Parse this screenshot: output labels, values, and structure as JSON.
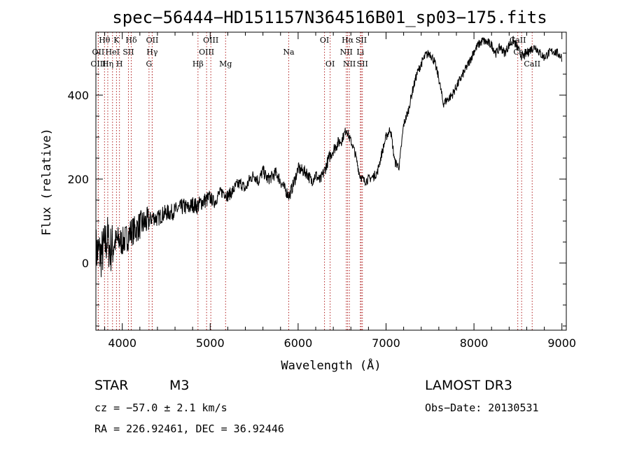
{
  "chart_data": {
    "type": "line",
    "title": "spec−56444−HD151157N364516B01_sp03−175.fits",
    "xlabel": "Wavelength (Å)",
    "ylabel": "Flux (relative)",
    "xlim": [
      3700,
      9050
    ],
    "ylim": [
      -160,
      550
    ],
    "xticks": [
      4000,
      5000,
      6000,
      7000,
      8000,
      9000
    ],
    "yticks": [
      0,
      200,
      400
    ],
    "grid": false,
    "series": [
      {
        "name": "spectrum",
        "x": [
          3700,
          3760,
          3800,
          3830,
          3860,
          3900,
          3950,
          4000,
          4050,
          4100,
          4150,
          4200,
          4250,
          4300,
          4350,
          4400,
          4450,
          4500,
          4550,
          4600,
          4650,
          4700,
          4750,
          4800,
          4850,
          4900,
          4950,
          5000,
          5050,
          5100,
          5150,
          5200,
          5250,
          5300,
          5350,
          5400,
          5450,
          5500,
          5550,
          5600,
          5650,
          5700,
          5750,
          5800,
          5850,
          5900,
          5950,
          6000,
          6050,
          6100,
          6150,
          6200,
          6250,
          6300,
          6350,
          6400,
          6450,
          6500,
          6550,
          6580,
          6620,
          6650,
          6700,
          6750,
          6800,
          6850,
          6900,
          6950,
          7000,
          7050,
          7100,
          7150,
          7200,
          7250,
          7300,
          7350,
          7400,
          7450,
          7500,
          7550,
          7600,
          7650,
          7700,
          7750,
          7800,
          7850,
          7900,
          7950,
          8000,
          8050,
          8100,
          8150,
          8200,
          8250,
          8300,
          8350,
          8400,
          8450,
          8500,
          8550,
          8600,
          8650,
          8700,
          8750,
          8800,
          8850,
          8900,
          8950,
          9000
        ],
        "values": [
          30,
          20,
          40,
          60,
          30,
          45,
          55,
          50,
          60,
          75,
          80,
          90,
          95,
          100,
          110,
          105,
          115,
          120,
          120,
          125,
          130,
          135,
          130,
          140,
          135,
          145,
          150,
          155,
          145,
          165,
          170,
          160,
          170,
          185,
          190,
          175,
          200,
          210,
          195,
          220,
          200,
          205,
          215,
          195,
          175,
          160,
          190,
          225,
          220,
          215,
          195,
          210,
          195,
          220,
          250,
          270,
          285,
          295,
          320,
          300,
          280,
          260,
          210,
          195,
          200,
          205,
          215,
          260,
          300,
          320,
          240,
          230,
          330,
          360,
          410,
          450,
          475,
          495,
          500,
          480,
          440,
          380,
          390,
          400,
          420,
          440,
          460,
          480,
          505,
          520,
          530,
          525,
          520,
          500,
          515,
          500,
          520,
          530,
          510,
          490,
          500,
          510,
          515,
          500,
          490,
          500,
          505,
          500,
          490
        ]
      }
    ],
    "line_marks": [
      {
        "label": "Hθ",
        "x": 3798,
        "row": 0
      },
      {
        "label": "K",
        "x": 3934,
        "row": 0
      },
      {
        "label": "Hδ",
        "x": 4102,
        "row": 0
      },
      {
        "label": "OII",
        "x": 4341,
        "row": 0
      },
      {
        "label": "OIII",
        "x": 5007,
        "row": 0
      },
      {
        "label": "OI",
        "x": 6300,
        "row": 0
      },
      {
        "label": "Hα",
        "x": 6563,
        "row": 0
      },
      {
        "label": "SII",
        "x": 6717,
        "row": 0
      },
      {
        "label": "CaII",
        "x": 8498,
        "row": 0
      },
      {
        "label": "OII",
        "x": 3727,
        "row": 1
      },
      {
        "label": "HeI",
        "x": 3889,
        "row": 1
      },
      {
        "label": "SII",
        "x": 4070,
        "row": 1
      },
      {
        "label": "Hγ",
        "x": 4340,
        "row": 1
      },
      {
        "label": "OIII",
        "x": 4959,
        "row": 1
      },
      {
        "label": "Na",
        "x": 5893,
        "row": 1
      },
      {
        "label": "NII",
        "x": 6548,
        "row": 1
      },
      {
        "label": "Li",
        "x": 6708,
        "row": 1
      },
      {
        "label": "CaII",
        "x": 8542,
        "row": 1
      },
      {
        "label": "OIII",
        "x": 3727,
        "row": 2
      },
      {
        "label": "Hη",
        "x": 3835,
        "row": 2
      },
      {
        "label": "H",
        "x": 3968,
        "row": 2
      },
      {
        "label": "G",
        "x": 4304,
        "row": 2
      },
      {
        "label": "Hβ",
        "x": 4861,
        "row": 2
      },
      {
        "label": "Mg",
        "x": 5175,
        "row": 2
      },
      {
        "label": "OI",
        "x": 6364,
        "row": 2
      },
      {
        "label": "NII",
        "x": 6583,
        "row": 2
      },
      {
        "label": "SII",
        "x": 6731,
        "row": 2
      },
      {
        "label": "CaII",
        "x": 8662,
        "row": 2
      }
    ]
  },
  "info": {
    "object_class": "STAR",
    "subclass": "M3",
    "survey": "LAMOST DR3",
    "cz": "cz = −57.0 ± 2.1 km/s",
    "obs_date": "Obs−Date: 20130531",
    "coords": "RA = 226.92461, DEC =  36.92446"
  }
}
